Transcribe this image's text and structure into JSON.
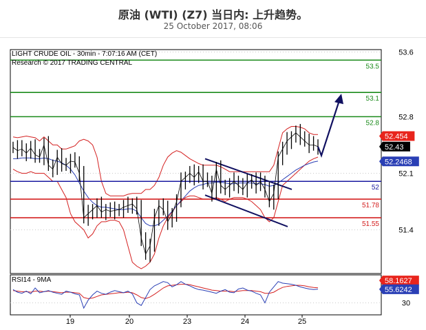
{
  "header": {
    "title": "原油 (WTI) (Z7) 当日内: 上升趋势。",
    "subtitle": "25 October 2017, 08:06"
  },
  "info": {
    "line1": "LIGHT CRUDE OIL - 30min - 7:07:16 AM (CET)",
    "line2": "Research © 2017 TRADING CENTRAL"
  },
  "rsi_panel": {
    "label": "RSI14 - 9MA"
  },
  "chart_data": [
    {
      "type": "line",
      "panel": "price",
      "x_axis": {
        "tick_labels": [
          "19",
          "20",
          "23",
          "24",
          "25"
        ]
      },
      "y_axis": {
        "ticks": [
          53.6,
          52.8,
          52.1,
          51.4
        ],
        "ylim": [
          50.86,
          53.63
        ],
        "side": "right"
      },
      "horizontal_levels": [
        {
          "label": "53.5",
          "value": 53.5,
          "color": "#1a8a1a"
        },
        {
          "label": "53.1",
          "value": 53.1,
          "color": "#1a8a1a"
        },
        {
          "label": "52.8",
          "value": 52.8,
          "color": "#1a8a1a"
        },
        {
          "label": "52",
          "value": 52.0,
          "color": "#1a1aa0"
        },
        {
          "label": "51.78",
          "value": 51.78,
          "color": "#d42020"
        },
        {
          "label": "51.55",
          "value": 51.55,
          "color": "#d42020"
        }
      ],
      "price_tags": [
        {
          "label": "52.454",
          "value": 52.454,
          "color": "#e8241c"
        },
        {
          "label": "52.43",
          "value": 52.43,
          "color": "#000000"
        },
        {
          "label": "52.2468",
          "value": 52.2468,
          "color": "#2a3fb5"
        }
      ],
      "series": [
        {
          "role": "price",
          "values": [
            52.42,
            52.38,
            52.4,
            52.35,
            52.41,
            52.33,
            52.3,
            52.45,
            52.2,
            52.15,
            52.3,
            52.22,
            52.2,
            52.25,
            52.24,
            52.1,
            51.55,
            51.6,
            51.65,
            51.7,
            51.62,
            51.65,
            51.63,
            51.64,
            51.65,
            51.68,
            51.7,
            51.72,
            51.66,
            51.3,
            51.1,
            51.2,
            51.55,
            51.7,
            51.65,
            51.5,
            51.6,
            51.75,
            52.0,
            52.05,
            52.1,
            52.05,
            52.12,
            52.0,
            52.0,
            51.85,
            52.15,
            51.95,
            51.9,
            51.95,
            52.0,
            51.95,
            51.9,
            51.98,
            52.02,
            51.95,
            52.0,
            51.9,
            51.75,
            51.85,
            52.3,
            52.4,
            52.5,
            52.55,
            52.6,
            52.55,
            52.5,
            52.45,
            52.45,
            52.43
          ]
        },
        {
          "role": "moving-average",
          "values": [
            52.28,
            52.28,
            52.29,
            52.29,
            52.29,
            52.28,
            52.28,
            52.29,
            52.28,
            52.26,
            52.25,
            52.23,
            52.2,
            52.15,
            52.08,
            51.98,
            51.88,
            51.8,
            51.74,
            51.7,
            51.68,
            51.68,
            51.67,
            51.66,
            51.65,
            51.65,
            51.66,
            51.66,
            51.63,
            51.55,
            51.48,
            51.45,
            51.45,
            51.47,
            51.52,
            51.57,
            51.63,
            51.7,
            51.76,
            51.82,
            51.88,
            51.92,
            51.95,
            51.96,
            51.98,
            51.98,
            51.99,
            51.99,
            51.98,
            51.97,
            51.97,
            51.98,
            51.98,
            51.98,
            51.98,
            51.97,
            51.97,
            51.96,
            51.94,
            51.95,
            51.98,
            52.02,
            52.06,
            52.1,
            52.14,
            52.17,
            52.2,
            52.22,
            52.24,
            52.25
          ]
        },
        {
          "role": "bollinger-upper",
          "values": [
            52.55,
            52.54,
            52.55,
            52.56,
            52.55,
            52.54,
            52.5,
            52.55,
            52.5,
            52.45,
            52.45,
            52.4,
            52.4,
            52.42,
            52.44,
            52.5,
            52.52,
            52.5,
            52.45,
            52.3,
            52.0,
            51.85,
            51.82,
            51.82,
            51.82,
            51.82,
            51.84,
            51.85,
            51.85,
            51.85,
            51.9,
            51.9,
            51.95,
            52.05,
            52.2,
            52.3,
            52.35,
            52.38,
            52.36,
            52.32,
            52.28,
            52.25,
            52.22,
            52.2,
            52.2,
            52.2,
            52.2,
            52.18,
            52.15,
            52.12,
            52.12,
            52.12,
            52.12,
            52.12,
            52.12,
            52.12,
            52.12,
            52.12,
            52.12,
            52.2,
            52.4,
            52.6,
            52.65,
            52.68,
            52.68,
            52.67,
            52.65,
            52.6,
            52.58,
            52.58
          ]
        },
        {
          "role": "bollinger-lower",
          "values": [
            52.15,
            52.12,
            52.1,
            52.1,
            52.12,
            52.1,
            52.1,
            52.1,
            52.05,
            52.0,
            52.0,
            51.9,
            51.8,
            51.6,
            51.5,
            51.45,
            51.4,
            51.3,
            51.35,
            51.45,
            51.5,
            51.5,
            51.52,
            51.52,
            51.5,
            51.4,
            51.2,
            51.0,
            50.95,
            50.92,
            50.95,
            51.0,
            51.1,
            51.3,
            51.45,
            51.55,
            51.62,
            51.7,
            51.75,
            51.8,
            51.82,
            51.82,
            51.8,
            51.78,
            51.78,
            51.78,
            51.8,
            51.78,
            51.75,
            51.78,
            51.8,
            51.8,
            51.8,
            51.78,
            51.75,
            51.7,
            51.65,
            51.55,
            51.5,
            51.55,
            51.75,
            51.95,
            52.0,
            52.05,
            52.1,
            52.15,
            52.2,
            52.25,
            52.28,
            52.3
          ]
        }
      ],
      "annotations": [
        "descending channel",
        "projected rise arrow to 53.1"
      ]
    },
    {
      "type": "line",
      "panel": "rsi",
      "y_axis": {
        "ticks": [
          30
        ],
        "side": "right"
      },
      "price_tags": [
        {
          "label": "58.1627",
          "value": 58.1627,
          "color": "#e8241c"
        },
        {
          "label": "55.6242",
          "value": 55.6242,
          "color": "#2a3fb5"
        }
      ],
      "series": [
        {
          "role": "rsi",
          "values": [
            55,
            50,
            48,
            52,
            47,
            58,
            49,
            51,
            53,
            50,
            48,
            46,
            52,
            50,
            47,
            45,
            20,
            35,
            45,
            52,
            48,
            46,
            50,
            53,
            51,
            49,
            52,
            47,
            30,
            25,
            40,
            55,
            62,
            66,
            70,
            68,
            60,
            64,
            70,
            65,
            62,
            58,
            55,
            54,
            52,
            50,
            48,
            52,
            55,
            50,
            49,
            56,
            58,
            54,
            52,
            48,
            45,
            30,
            50,
            60,
            70,
            67,
            66,
            65,
            63,
            60,
            58,
            56,
            55,
            55.6
          ]
        },
        {
          "role": "rsi-ma",
          "values": [
            53,
            52,
            51,
            51,
            50,
            52,
            52,
            51,
            52,
            51,
            50,
            49,
            50,
            50,
            49,
            48,
            40,
            38,
            39,
            42,
            45,
            46,
            47,
            48,
            49,
            49,
            50,
            49,
            45,
            40,
            38,
            41,
            46,
            52,
            58,
            62,
            63,
            64,
            65,
            65,
            64,
            62,
            60,
            58,
            56,
            54,
            53,
            52,
            52,
            52,
            51,
            52,
            53,
            53,
            53,
            52,
            51,
            48,
            48,
            50,
            55,
            59,
            61,
            62,
            63,
            63,
            62,
            60,
            59,
            58.2
          ]
        }
      ]
    }
  ]
}
